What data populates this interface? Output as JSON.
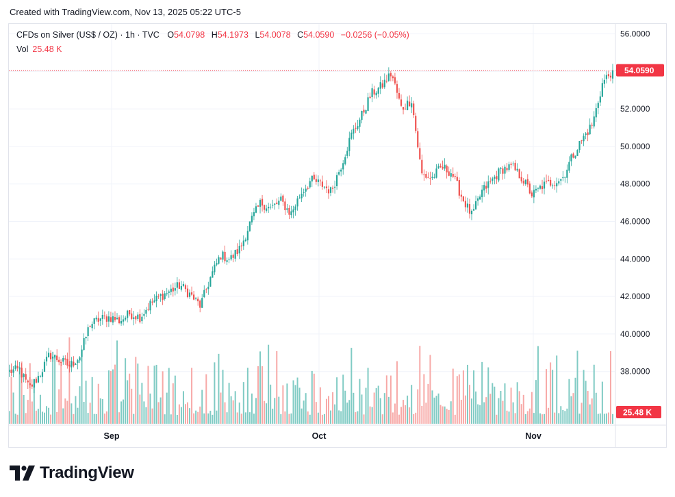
{
  "header": {
    "created": "Created with TradingView.com, Nov 13, 2025 05:22 UTC-5"
  },
  "legend": {
    "symbol": "CFDs on Silver (US$ / OZ) · 1h · TVC",
    "o_label": "O",
    "o": "54.0798",
    "h_label": "H",
    "h": "54.1973",
    "l_label": "L",
    "l": "54.0078",
    "c_label": "C",
    "c": "54.0590",
    "change": "−0.0256 (−0.05%)",
    "vol_label": "Vol",
    "vol": "25.48 K"
  },
  "brand": {
    "name": "TradingView"
  },
  "colors": {
    "up": "#26a69a",
    "down": "#ef5350",
    "up_vol": "#80cbc4",
    "down_vol": "#f7a9a7",
    "last": "#f23645"
  },
  "chart_data": {
    "type": "candlestick",
    "title": "CFDs on Silver (US$ / OZ)",
    "interval": "1h",
    "y_ticks": [
      "56.0000",
      "54.0000",
      "52.0000",
      "50.0000",
      "48.0000",
      "46.0000",
      "44.0000",
      "42.0000",
      "40.0000",
      "38.0000"
    ],
    "ylim": [
      37,
      56.5
    ],
    "x_ticks": [
      "Sep",
      "Oct",
      "Nov"
    ],
    "last_price": "54.0590",
    "last_volume": "25.48 K",
    "grid": true,
    "close_path": [
      [
        "Aug 26",
        38.0
      ],
      [
        "Aug 27",
        38.1
      ],
      [
        "Aug 28",
        37.1
      ],
      [
        "Aug 29",
        37.8
      ],
      [
        "Aug 31",
        38.9
      ],
      [
        "Sep 1",
        38.6
      ],
      [
        "Sep 2",
        38.3
      ],
      [
        "Sep 3",
        38.8
      ],
      [
        "Sep 4",
        40.5
      ],
      [
        "Sep 5",
        40.8
      ],
      [
        "Sep 8",
        40.9
      ],
      [
        "Sep 9",
        40.7
      ],
      [
        "Sep 10",
        41.1
      ],
      [
        "Sep 11",
        40.9
      ],
      [
        "Sep 12",
        41.6
      ],
      [
        "Sep 15",
        42.0
      ],
      [
        "Sep 16",
        42.3
      ],
      [
        "Sep 17",
        42.6
      ],
      [
        "Sep 18",
        42.1
      ],
      [
        "Sep 19",
        41.5
      ],
      [
        "Sep 22",
        43.0
      ],
      [
        "Sep 23",
        44.2
      ],
      [
        "Sep 24",
        44.0
      ],
      [
        "Sep 25",
        44.6
      ],
      [
        "Sep 26",
        46.0
      ],
      [
        "Sep 29",
        47.0
      ],
      [
        "Sep 30",
        46.7
      ],
      [
        "Oct 1",
        47.1
      ],
      [
        "Oct 2",
        46.4
      ],
      [
        "Oct 3",
        47.5
      ],
      [
        "Oct 6",
        48.2
      ],
      [
        "Oct 7",
        48.0
      ],
      [
        "Oct 8",
        47.6
      ],
      [
        "Oct 9",
        49.0
      ],
      [
        "Oct 10",
        50.6
      ],
      [
        "Oct 13",
        51.6
      ],
      [
        "Oct 14",
        52.8
      ],
      [
        "Oct 15",
        53.2
      ],
      [
        "Oct 16",
        53.9
      ],
      [
        "Oct 17",
        52.0
      ],
      [
        "Oct 20",
        52.5
      ],
      [
        "Oct 21",
        48.5
      ],
      [
        "Oct 22",
        48.3
      ],
      [
        "Oct 23",
        48.9
      ],
      [
        "Oct 24",
        48.6
      ],
      [
        "Oct 27",
        47.3
      ],
      [
        "Oct 28",
        46.3
      ],
      [
        "Oct 29",
        47.6
      ],
      [
        "Oct 30",
        48.2
      ],
      [
        "Oct 31",
        48.8
      ],
      [
        "Nov 2",
        48.9
      ],
      [
        "Nov 3",
        48.3
      ],
      [
        "Nov 4",
        47.4
      ],
      [
        "Nov 5",
        47.9
      ],
      [
        "Nov 6",
        48.1
      ],
      [
        "Nov 7",
        48.3
      ],
      [
        "Nov 9",
        49.5
      ],
      [
        "Nov 10",
        50.4
      ],
      [
        "Nov 11",
        51.2
      ],
      [
        "Nov 12",
        53.4
      ],
      [
        "Nov 13",
        54.06
      ]
    ],
    "volume_range": [
      5,
      52
    ]
  }
}
